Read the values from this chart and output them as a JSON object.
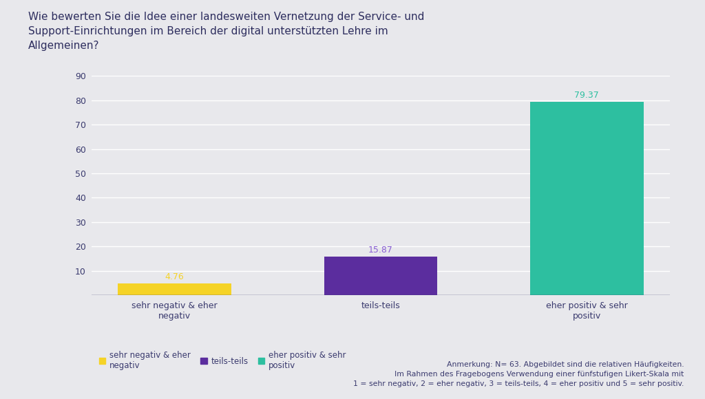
{
  "title": "Wie bewerten Sie die Idee einer landesweiten Vernetzung der Service- und\nSupport-Einrichtungen im Bereich der digital unterstützten Lehre im\nAllgemeinen?",
  "categories": [
    "sehr negativ & eher\nnegativ",
    "teils-teils",
    "eher positiv & sehr\npositiv"
  ],
  "values": [
    4.76,
    15.87,
    79.37
  ],
  "bar_colors": [
    "#f5d327",
    "#5b2d9e",
    "#2dbfa0"
  ],
  "value_labels": [
    "4.76",
    "15.87",
    "79.37"
  ],
  "value_label_colors": [
    "#f5d327",
    "#8a5fd4",
    "#2dbfa0"
  ],
  "ylim": [
    0,
    90
  ],
  "yticks": [
    0,
    10,
    20,
    30,
    40,
    50,
    60,
    70,
    80,
    90
  ],
  "background_color": "#e8e8ec",
  "grid_color": "#ffffff",
  "title_color": "#2d2d5e",
  "tick_label_color": "#3a3a6e",
  "annotation_text": "Anmerkung: N= 63. Abgebildet sind die relativen Häufigkeiten.\nIm Rahmen des Fragebogens Verwendung einer fünfstufigen Likert-Skala mit\n1 = sehr negativ, 2 = eher negativ, 3 = teils-teils, 4 = eher positiv und 5 = sehr positiv.",
  "legend_colors": [
    "#f5d327",
    "#5b2d9e",
    "#2dbfa0"
  ],
  "legend_labels": [
    "sehr negativ & eher\nnegativ",
    "teils-teils",
    "eher positiv & sehr\npositiv"
  ]
}
